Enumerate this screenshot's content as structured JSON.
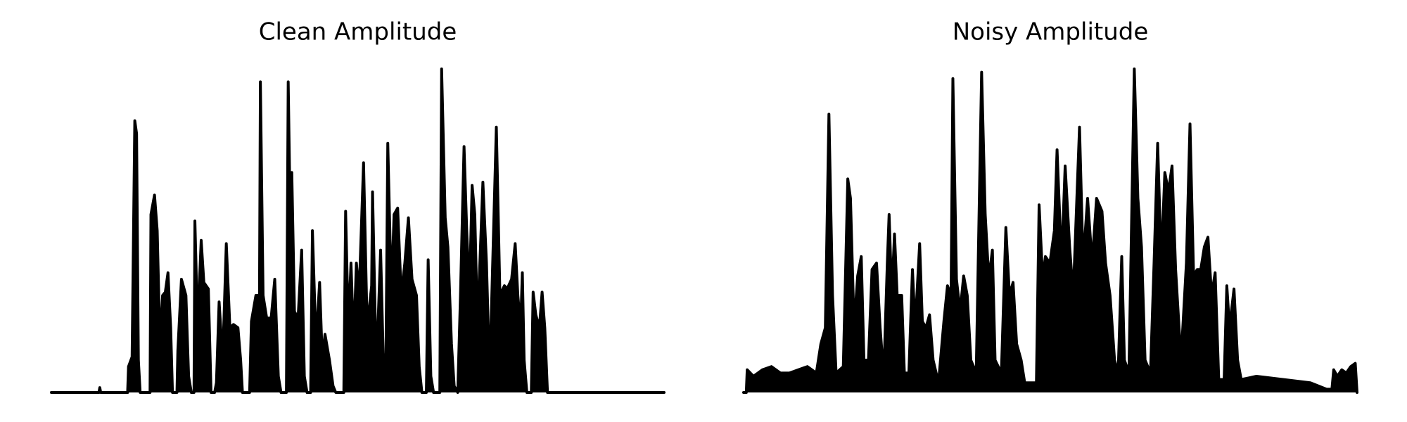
{
  "chart_data": [
    {
      "type": "line",
      "title": "Clean Amplitude",
      "color": "#000000",
      "xlim": [
        0,
        683
      ],
      "ylim": [
        0,
        1
      ],
      "x": [
        0,
        53,
        54,
        55,
        85,
        86,
        90,
        93,
        95,
        97,
        99,
        110,
        111,
        115,
        118,
        121,
        124,
        127,
        130,
        133,
        135,
        140,
        141,
        145,
        150,
        153,
        156,
        159,
        160,
        163,
        167,
        170,
        175,
        178,
        182,
        184,
        187,
        191,
        195,
        199,
        203,
        208,
        211,
        213,
        221,
        223,
        228,
        232,
        233,
        236,
        240,
        245,
        249,
        253,
        256,
        262,
        264,
        267,
        268,
        271,
        275,
        279,
        282,
        285,
        289,
        291,
        295,
        299,
        302,
        305,
        310,
        314,
        317,
        326,
        328,
        331,
        334,
        337,
        340,
        343,
        348,
        352,
        357,
        358,
        362,
        363,
        367,
        370,
        373,
        375,
        379,
        382,
        386,
        390,
        394,
        398,
        402,
        407,
        410,
        413,
        418,
        420,
        423,
        426,
        433,
        435,
        439,
        442,
        446,
        449,
        453,
        456,
        460,
        463,
        466,
        469,
        472,
        475,
        481,
        485,
        488,
        490,
        496,
        500,
        505,
        508,
        513,
        517,
        520,
        523,
        525,
        527,
        530,
        535,
        537,
        540,
        544,
        547,
        550,
        553,
        683
      ],
      "values": [
        0,
        0,
        0.015,
        0,
        0,
        0.08,
        0.11,
        0.84,
        0.8,
        0.1,
        0,
        0,
        0.55,
        0.61,
        0.5,
        0.15,
        0.3,
        0.31,
        0.37,
        0.2,
        0,
        0,
        0.13,
        0.35,
        0.3,
        0.05,
        0,
        0,
        0.53,
        0.2,
        0.47,
        0.34,
        0.32,
        0,
        0,
        0.03,
        0.28,
        0.1,
        0.46,
        0.2,
        0.21,
        0.2,
        0.1,
        0,
        0,
        0.22,
        0.3,
        0.3,
        0.96,
        0.3,
        0.23,
        0.23,
        0.35,
        0.05,
        0,
        0,
        0.96,
        0.4,
        0.68,
        0.25,
        0.23,
        0.44,
        0.05,
        0,
        0,
        0.5,
        0.15,
        0.34,
        0.1,
        0.18,
        0.1,
        0.02,
        0,
        0,
        0.56,
        0.2,
        0.4,
        0.15,
        0.4,
        0.3,
        0.71,
        0.2,
        0.33,
        0.62,
        0.1,
        0.12,
        0.44,
        0.1,
        0.12,
        0.77,
        0.3,
        0.55,
        0.57,
        0.3,
        0.4,
        0.54,
        0.35,
        0.3,
        0.08,
        0,
        0,
        0.41,
        0.05,
        0,
        0,
        1.0,
        0.54,
        0.45,
        0.15,
        0.02,
        0,
        0.3,
        0.76,
        0.5,
        0.3,
        0.64,
        0.55,
        0.2,
        0.65,
        0.4,
        0.1,
        0.2,
        0.82,
        0.3,
        0.33,
        0.32,
        0.35,
        0.46,
        0.3,
        0.2,
        0.37,
        0.1,
        0,
        0,
        0.31,
        0.24,
        0.2,
        0.31,
        0.2,
        0,
        0
      ]
    },
    {
      "type": "line",
      "title": "Noisy Amplitude",
      "color": "#000000",
      "xlim": [
        0,
        683
      ],
      "ylim": [
        0,
        1
      ],
      "x": [
        0,
        3,
        4,
        11,
        21,
        31,
        41,
        51,
        61,
        71,
        81,
        86,
        91,
        95,
        99,
        103,
        111,
        116,
        119,
        123,
        127,
        131,
        134,
        139,
        143,
        148,
        152,
        156,
        160,
        162,
        165,
        168,
        171,
        176,
        179,
        184,
        188,
        191,
        196,
        199,
        203,
        207,
        211,
        217,
        223,
        227,
        231,
        233,
        237,
        241,
        245,
        249,
        253,
        259,
        265,
        269,
        273,
        277,
        280,
        287,
        292,
        296,
        300,
        304,
        309,
        313,
        321,
        326,
        329,
        333,
        336,
        341,
        346,
        349,
        354,
        358,
        363,
        367,
        374,
        378,
        383,
        388,
        393,
        399,
        403,
        408,
        413,
        417,
        421,
        424,
        429,
        435,
        439,
        443,
        447,
        453,
        457,
        461,
        465,
        469,
        473,
        477,
        481,
        487,
        493,
        497,
        501,
        505,
        509,
        513,
        517,
        521,
        525,
        529,
        535,
        538,
        541,
        546,
        550,
        554,
        571,
        601,
        631,
        649,
        655,
        657,
        661,
        666,
        671,
        676,
        681,
        683
      ],
      "values": [
        0,
        0,
        0.07,
        0.05,
        0.07,
        0.08,
        0.06,
        0.06,
        0.07,
        0.08,
        0.06,
        0.15,
        0.2,
        0.86,
        0.3,
        0.06,
        0.08,
        0.66,
        0.6,
        0.2,
        0.36,
        0.42,
        0.1,
        0.1,
        0.38,
        0.4,
        0.2,
        0.05,
        0.4,
        0.55,
        0.3,
        0.49,
        0.3,
        0.3,
        0.06,
        0.06,
        0.38,
        0.2,
        0.46,
        0.22,
        0.2,
        0.24,
        0.1,
        0.03,
        0.22,
        0.33,
        0.3,
        0.97,
        0.35,
        0.25,
        0.36,
        0.3,
        0.1,
        0.06,
        0.99,
        0.55,
        0.35,
        0.44,
        0.1,
        0.06,
        0.51,
        0.3,
        0.34,
        0.15,
        0.1,
        0.03,
        0.03,
        0.03,
        0.58,
        0.35,
        0.42,
        0.4,
        0.5,
        0.75,
        0.4,
        0.7,
        0.45,
        0.3,
        0.82,
        0.4,
        0.6,
        0.4,
        0.6,
        0.56,
        0.4,
        0.3,
        0.1,
        0.06,
        0.42,
        0.1,
        0.06,
        1.0,
        0.6,
        0.45,
        0.1,
        0.06,
        0.4,
        0.77,
        0.4,
        0.68,
        0.62,
        0.7,
        0.38,
        0.1,
        0.4,
        0.83,
        0.36,
        0.38,
        0.38,
        0.45,
        0.48,
        0.3,
        0.37,
        0.04,
        0.04,
        0.33,
        0.2,
        0.32,
        0.1,
        0.04,
        0.05,
        0.04,
        0.03,
        0.01,
        0.01,
        0.07,
        0.05,
        0.07,
        0.06,
        0.08,
        0.09,
        0
      ]
    }
  ]
}
